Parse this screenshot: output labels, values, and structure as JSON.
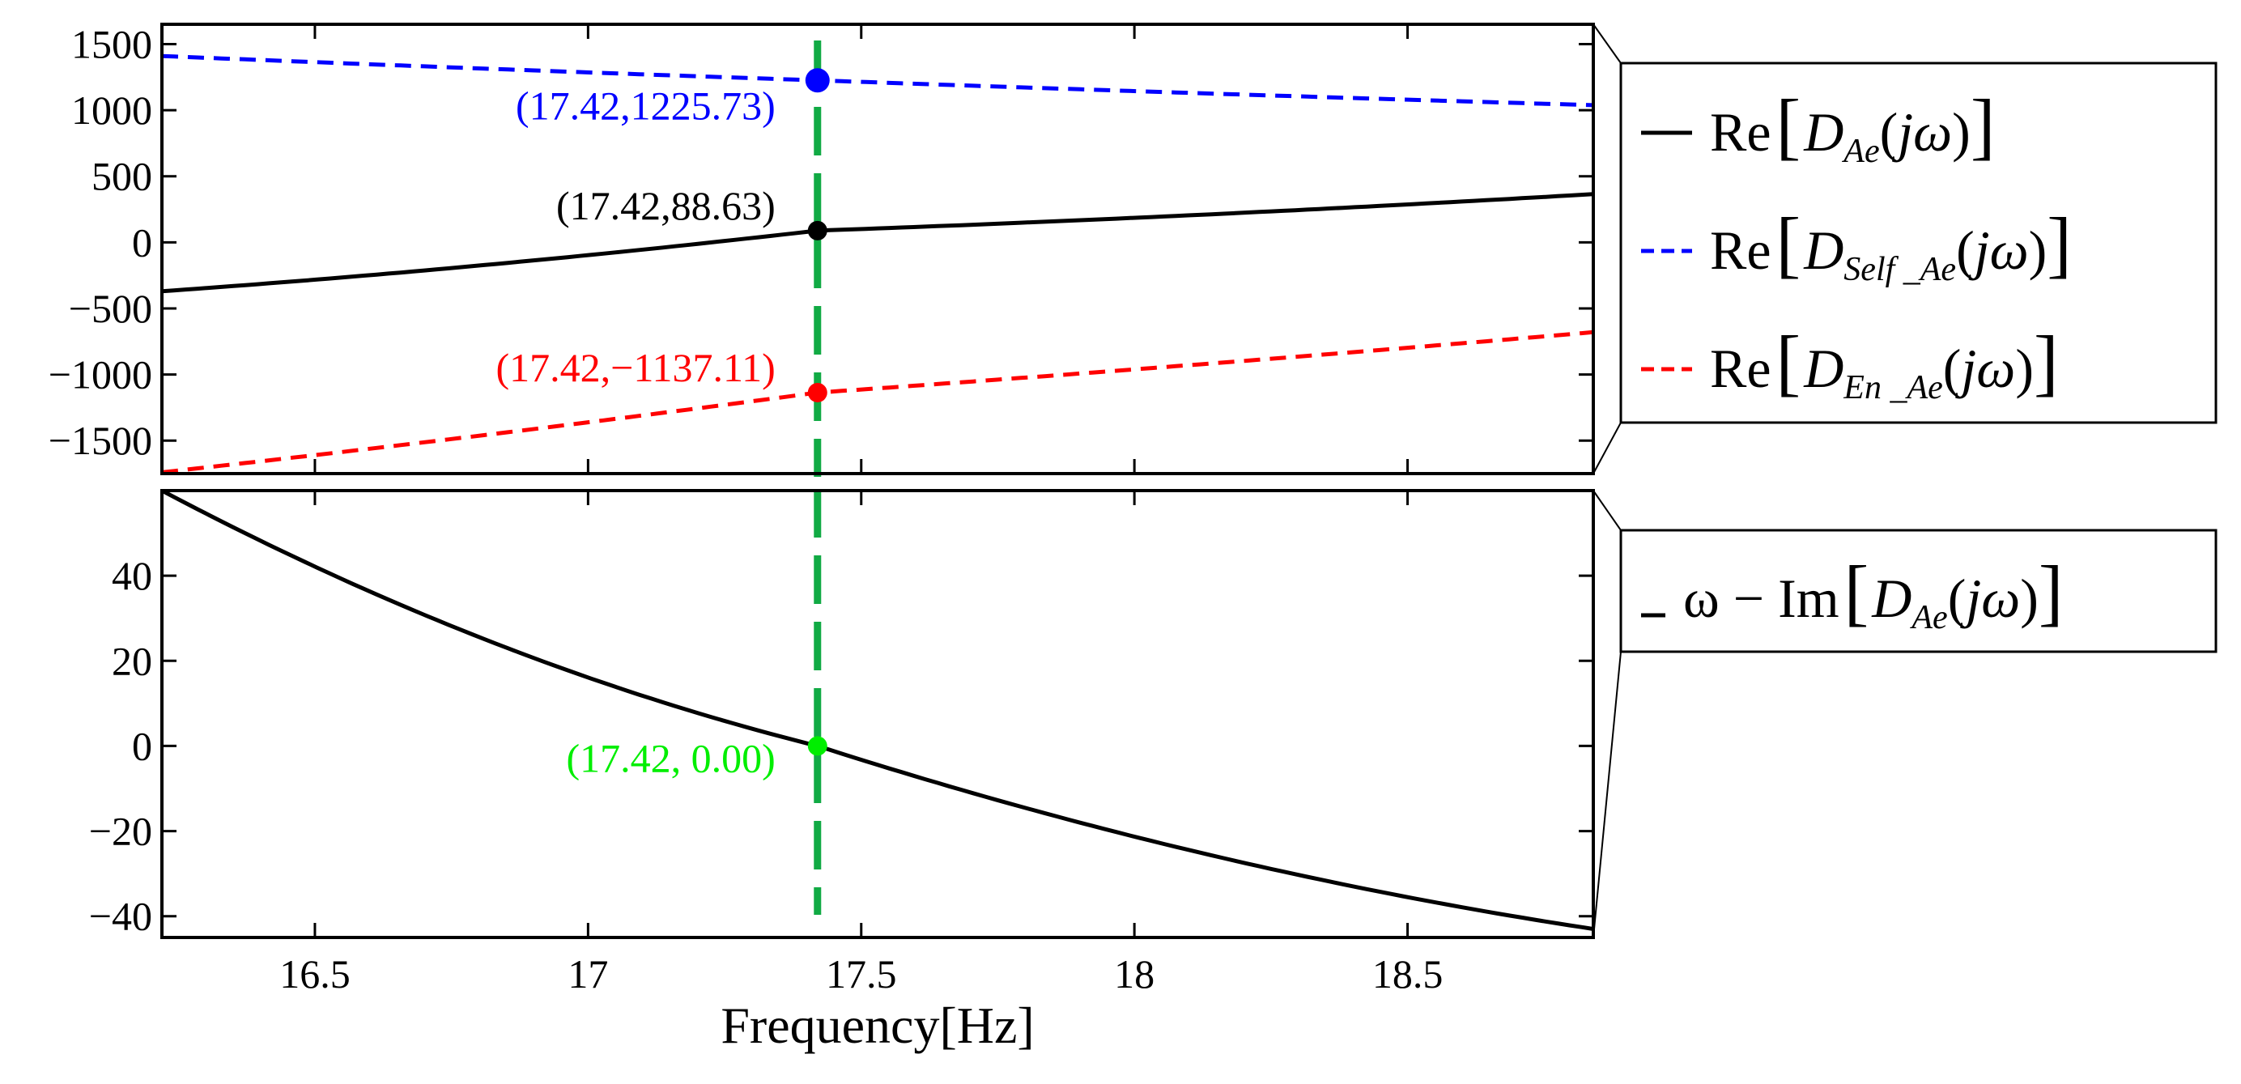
{
  "chart_data": [
    {
      "type": "line",
      "panel": "top",
      "xlim": [
        16.22,
        18.84
      ],
      "ylim": [
        -1750,
        1650
      ],
      "yticks": [
        1500,
        1000,
        500,
        0,
        -500,
        -1000,
        -1500
      ],
      "ytick_labels": [
        "1500",
        "1000",
        "500",
        "0",
        "−500",
        "−1000",
        "−1500"
      ],
      "series": [
        {
          "name": "Re[D_Ae(jω)]",
          "color": "#000000",
          "dash": "solid",
          "curvature": -0.12,
          "x": [
            16.22,
            17.42,
            18.84
          ],
          "y": [
            -370,
            88.63,
            365
          ]
        },
        {
          "name": "Re[D_Self_Ae(jω)]",
          "color": "#0000ff",
          "dash": "dashed",
          "curvature": 0.05,
          "x": [
            16.22,
            17.42,
            18.84
          ],
          "y": [
            1410,
            1225.73,
            1038
          ]
        },
        {
          "name": "Re[D_En_Ae(jω)]",
          "color": "#ff0000",
          "dash": "dashed",
          "curvature": -0.05,
          "x": [
            16.22,
            17.42,
            18.84
          ],
          "y": [
            -1740,
            -1137.11,
            -680
          ]
        }
      ],
      "markers": [
        {
          "x": 17.42,
          "y": 1225.73,
          "color": "#0000ff",
          "label": "(17.42,1225.73)"
        },
        {
          "x": 17.42,
          "y": 88.63,
          "color": "#000000",
          "label": "(17.42,88.63)"
        },
        {
          "x": 17.42,
          "y": -1137.11,
          "color": "#ff0000",
          "label": "(17.42,−1137.11)"
        }
      ],
      "vline": {
        "x": 17.42,
        "color": "#11aa44"
      },
      "legend": {
        "placement": "outside-right",
        "entries": [
          {
            "prefix": "Re",
            "sym": "D",
            "sub": "Ae",
            "arg": "jω",
            "color": "#000000",
            "dash": "solid"
          },
          {
            "prefix": "Re",
            "sym": "D",
            "sub": "Self _Ae",
            "arg": "jω",
            "color": "#0000ff",
            "dash": "dashed"
          },
          {
            "prefix": "Re",
            "sym": "D",
            "sub": "En _Ae",
            "arg": "jω",
            "color": "#ff0000",
            "dash": "dashed"
          }
        ]
      }
    },
    {
      "type": "line",
      "panel": "bottom",
      "xlim": [
        16.22,
        18.84
      ],
      "ylim": [
        -45,
        60
      ],
      "xticks": [
        16.5,
        17,
        17.5,
        18,
        18.5
      ],
      "xtick_labels": [
        "16.5",
        "17",
        "17.5",
        "18",
        "18.5"
      ],
      "yticks": [
        40,
        20,
        0,
        -20,
        -40
      ],
      "ytick_labels": [
        "40",
        "20",
        "0",
        "−20",
        "−40"
      ],
      "xlabel": "Frequency[Hz]",
      "series": [
        {
          "name": "ω − Im[D_Ae(jω)]",
          "color": "#000000",
          "dash": "solid",
          "curvature": 0.18,
          "x": [
            16.22,
            17.42,
            18.84
          ],
          "y": [
            60,
            0.0,
            -43
          ]
        }
      ],
      "markers": [
        {
          "x": 17.42,
          "y": 0.0,
          "color": "#00ee00",
          "label": "(17.42, 0.00)"
        }
      ],
      "vline": {
        "x": 17.42,
        "color": "#11aa44"
      },
      "legend": {
        "placement": "outside-right",
        "entries": [
          {
            "prefix": "ω − Im",
            "sym": "D",
            "sub": "Ae",
            "arg": "jω",
            "color": "#000000",
            "dash": "solid"
          }
        ]
      }
    }
  ]
}
